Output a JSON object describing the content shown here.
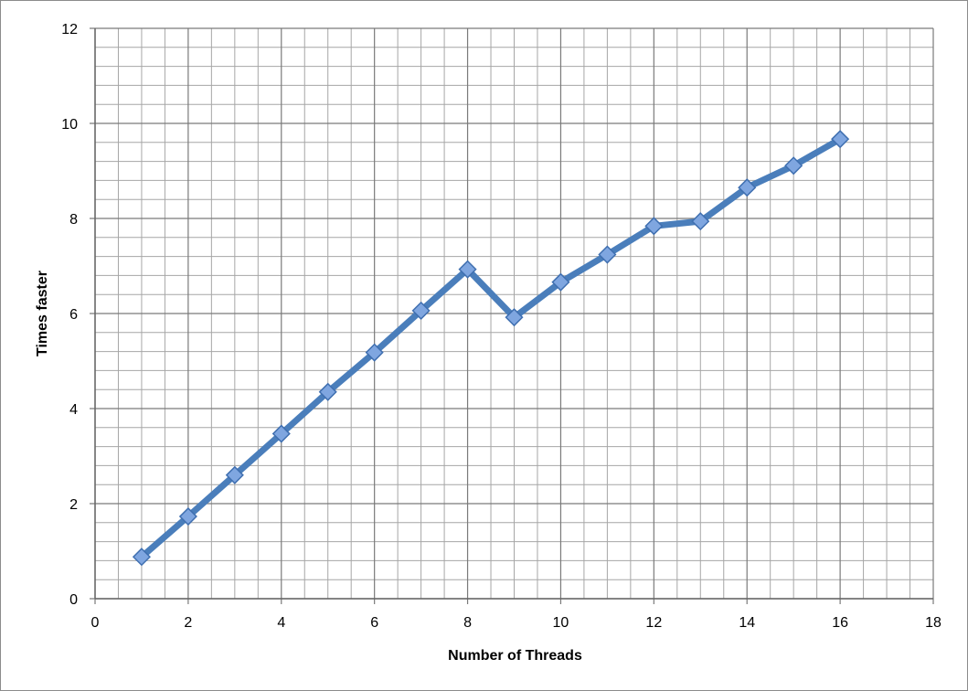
{
  "chart_data": {
    "type": "line",
    "xlabel": "Number of Threads",
    "ylabel": "Times faster",
    "xlim": [
      0,
      18
    ],
    "ylim": [
      0,
      12
    ],
    "x_ticks": [
      "0",
      "2",
      "4",
      "6",
      "8",
      "10",
      "12",
      "14",
      "16",
      "18"
    ],
    "y_ticks": [
      "0",
      "2",
      "4",
      "6",
      "8",
      "10",
      "12"
    ],
    "grid": true,
    "grid_minor": true,
    "legend": "none",
    "colors": {
      "line": "#4a7ebb",
      "marker_fill": "#7fa6e0",
      "marker_stroke": "#3f6fb0",
      "grid": "#a6a6a6"
    },
    "series": [
      {
        "x": [
          1,
          2,
          3,
          4,
          5,
          6,
          7,
          8,
          9,
          10,
          11,
          12,
          13,
          14,
          15,
          16
        ],
        "values": [
          0.88,
          1.73,
          2.6,
          3.47,
          4.35,
          5.18,
          6.06,
          6.93,
          5.92,
          6.66,
          7.24,
          7.84,
          7.94,
          8.65,
          9.11,
          9.67
        ]
      }
    ]
  }
}
